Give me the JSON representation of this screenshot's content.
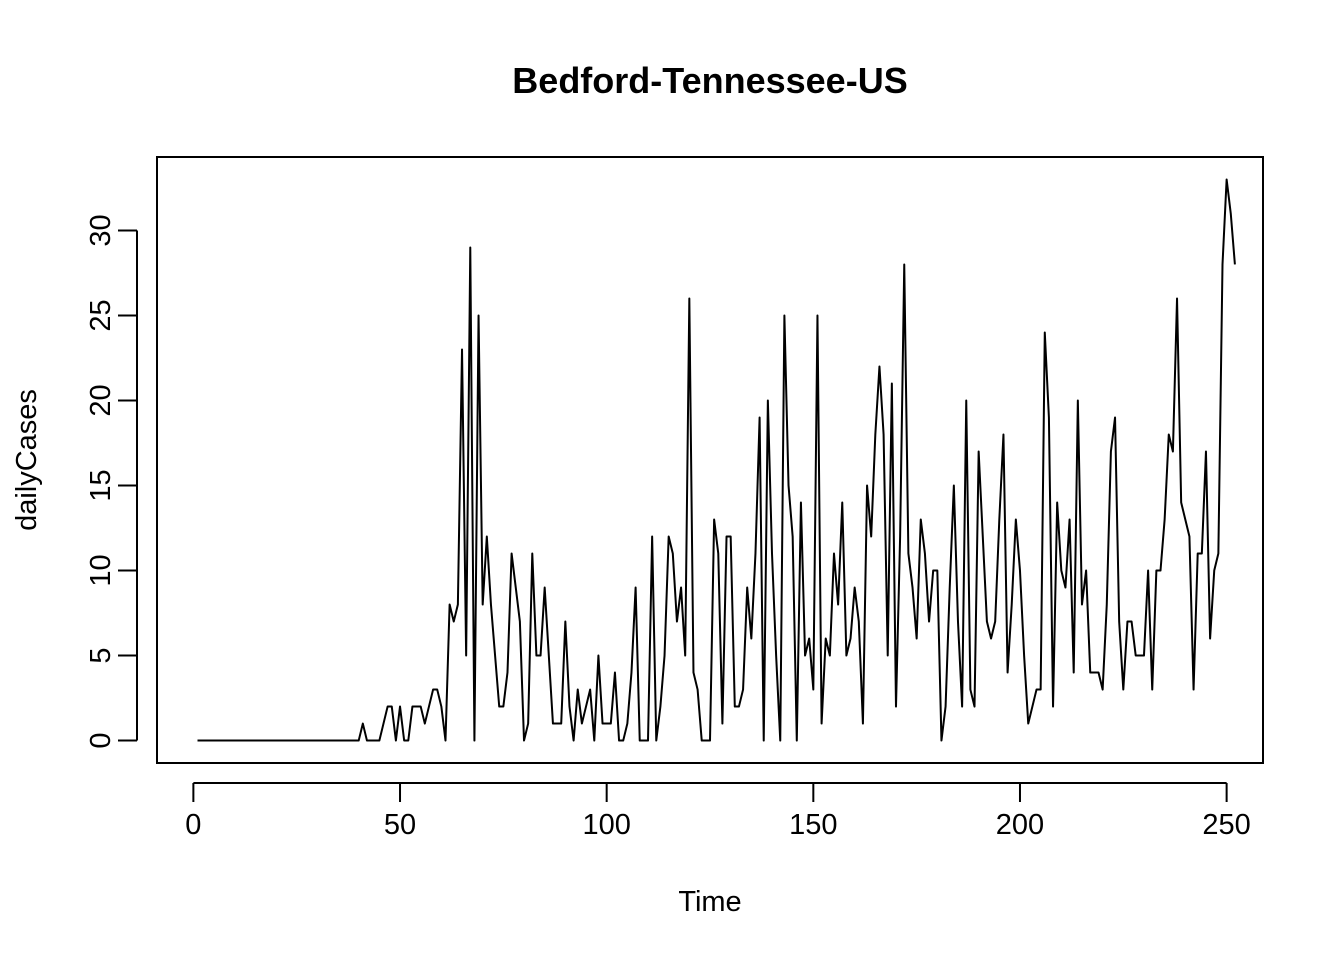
{
  "chart_data": {
    "type": "line",
    "title": "Bedford-Tennessee-US",
    "xlabel": "Time",
    "ylabel": "dailyCases",
    "xlim": [
      -8.8,
      258.8
    ],
    "ylim": [
      -1.32,
      34.32
    ],
    "x_ticks": [
      0,
      50,
      100,
      150,
      200,
      250
    ],
    "y_ticks": [
      0,
      5,
      10,
      15,
      20,
      25,
      30
    ],
    "grid": false,
    "legend": "none",
    "line_color": "#000000",
    "x_start": 1,
    "series": [
      {
        "values": [
          0,
          0,
          0,
          0,
          0,
          0,
          0,
          0,
          0,
          0,
          0,
          0,
          0,
          0,
          0,
          0,
          0,
          0,
          0,
          0,
          0,
          0,
          0,
          0,
          0,
          0,
          0,
          0,
          0,
          0,
          0,
          0,
          0,
          0,
          0,
          0,
          0,
          0,
          0,
          0,
          1,
          0,
          0,
          0,
          0,
          1,
          2,
          2,
          0,
          2,
          0,
          0,
          2,
          2,
          2,
          1,
          2,
          3,
          3,
          2,
          0,
          8,
          7,
          8,
          23,
          5,
          29,
          0,
          25,
          8,
          12,
          8,
          5,
          2,
          2,
          4,
          11,
          9,
          7,
          0,
          1,
          11,
          5,
          5,
          9,
          5,
          1,
          1,
          1,
          7,
          2,
          0,
          3,
          1,
          2,
          3,
          0,
          5,
          1,
          1,
          1,
          4,
          0,
          0,
          1,
          4,
          9,
          0,
          0,
          0,
          12,
          0,
          2,
          5,
          12,
          11,
          7,
          9,
          5,
          26,
          4,
          3,
          0,
          0,
          0,
          13,
          11,
          1,
          12,
          12,
          2,
          2,
          3,
          9,
          6,
          11,
          19,
          0,
          20,
          11,
          5,
          0,
          25,
          15,
          12,
          0,
          14,
          5,
          6,
          3,
          25,
          1,
          6,
          5,
          11,
          8,
          14,
          5,
          6,
          9,
          7,
          1,
          15,
          12,
          18,
          22,
          18,
          5,
          21,
          2,
          12,
          28,
          11,
          9,
          6,
          13,
          11,
          7,
          10,
          10,
          0,
          2,
          9,
          15,
          7,
          2,
          20,
          3,
          2,
          17,
          12,
          7,
          6,
          7,
          13,
          18,
          4,
          8,
          13,
          10,
          5,
          1,
          2,
          3,
          3,
          24,
          19,
          2,
          14,
          10,
          9,
          13,
          4,
          20,
          8,
          10,
          4,
          4,
          4,
          3,
          8,
          17,
          19,
          7,
          3,
          7,
          7,
          5,
          5,
          5,
          10,
          3,
          10,
          10,
          13,
          18,
          17,
          26,
          14,
          13,
          12,
          3,
          11,
          11,
          17,
          6,
          10,
          11,
          28,
          33,
          31,
          28
        ]
      }
    ]
  }
}
